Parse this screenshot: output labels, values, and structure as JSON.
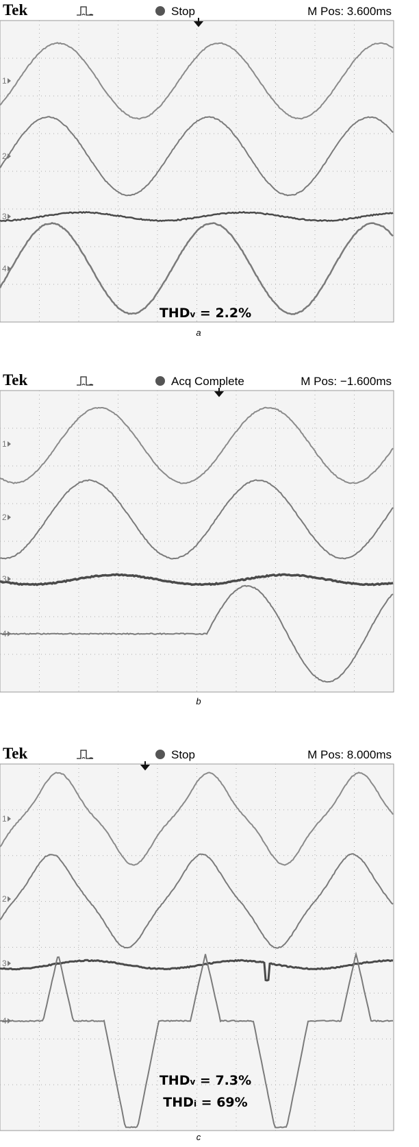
{
  "panels": [
    {
      "brand": "Tek",
      "status": "Stop",
      "position": "M Pos: 3.600ms",
      "channels": [
        "1",
        "2",
        "3",
        "4"
      ],
      "annotations": [
        {
          "main": "THD",
          "sub": "v",
          "rest": " = 2.2%"
        }
      ],
      "caption": "a"
    },
    {
      "brand": "Tek",
      "status": "Acq Complete",
      "position": "M Pos: −1.600ms",
      "channels": [
        "1",
        "2",
        "3",
        "4"
      ],
      "caption": "b"
    },
    {
      "brand": "Tek",
      "status": "Stop",
      "position": "M Pos: 8.000ms",
      "channels": [
        "1",
        "2",
        "3",
        "4"
      ],
      "annotations": [
        {
          "main": "THD",
          "sub": "v",
          "rest": " = 7.3%"
        },
        {
          "main": "THD",
          "sub": "i",
          "rest": " = 69%"
        }
      ],
      "caption": "c"
    }
  ]
}
